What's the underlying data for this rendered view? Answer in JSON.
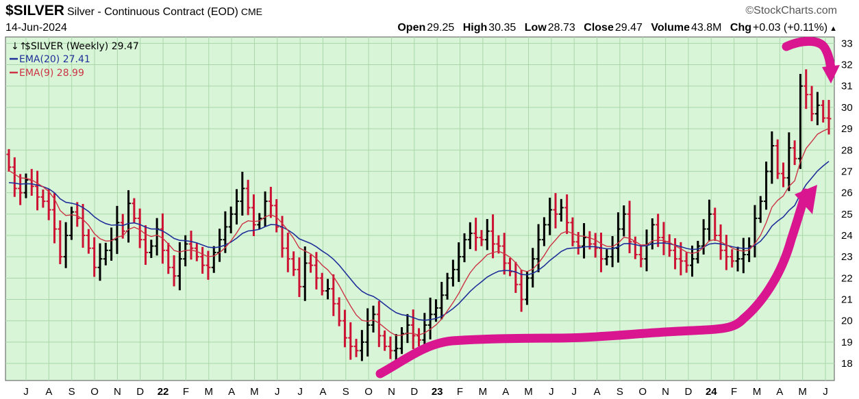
{
  "header": {
    "symbol": "$SILVER",
    "description": "Silver - Continuous Contract (EOD)",
    "exchange": "CME",
    "brand": "©StockCharts.com",
    "date": "14-Jun-2024",
    "open_label": "Open",
    "open": "29.25",
    "high_label": "High",
    "high": "30.35",
    "low_label": "Low",
    "low": "28.73",
    "close_label": "Close",
    "close": "29.47",
    "volume_label": "Volume",
    "volume": "43.8M",
    "chg_label": "Chg",
    "chg": "+0.03 (+0.11%)",
    "chg_arrow": "▲"
  },
  "legend": {
    "price": "$SILVER (Weekly) 29.47",
    "ema20": "EMA(20) 27.41",
    "ema9": "EMA(9) 28.99"
  },
  "colors": {
    "plot_bg": "#d8f5d8",
    "grid": "#a9d6a9",
    "up_bar": "#000000",
    "down_bar": "#cc1133",
    "ema20": "#1f2f99",
    "ema9": "#cc3344",
    "annotation": "#d9168f"
  },
  "chart_data": {
    "type": "ohlc",
    "ylim": [
      17.2,
      33.3
    ],
    "yticks": [
      18,
      19,
      20,
      21,
      22,
      23,
      24,
      25,
      26,
      27,
      28,
      29,
      30,
      31,
      32,
      33
    ],
    "x_tick_labels": [
      "J",
      "A",
      "S",
      "O",
      "N",
      "D",
      "22",
      "F",
      "M",
      "A",
      "M",
      "J",
      "J",
      "A",
      "S",
      "O",
      "N",
      "D",
      "23",
      "F",
      "M",
      "A",
      "M",
      "J",
      "J",
      "A",
      "S",
      "O",
      "N",
      "D",
      "24",
      "F",
      "M",
      "A",
      "M",
      "J"
    ],
    "grid": true,
    "legend_position": "top-left",
    "series": [
      {
        "name": "$SILVER (Weekly)",
        "last": 29.47
      },
      {
        "name": "EMA(20)",
        "last": 27.41
      },
      {
        "name": "EMA(9)",
        "last": 28.99
      }
    ],
    "close_by_week": [
      27.2,
      26.2,
      26.0,
      26.6,
      26.3,
      25.8,
      25.6,
      25.2,
      24.3,
      23.0,
      24.0,
      25.1,
      24.8,
      24.0,
      23.4,
      22.5,
      22.9,
      23.3,
      23.8,
      24.6,
      24.2,
      25.5,
      24.8,
      23.8,
      23.2,
      23.5,
      24.3,
      23.3,
      22.5,
      22.1,
      22.9,
      23.6,
      23.4,
      23.0,
      22.6,
      22.5,
      23.2,
      23.8,
      24.4,
      25.0,
      25.6,
      26.2,
      25.3,
      24.5,
      24.8,
      25.6,
      25.4,
      24.4,
      23.4,
      22.9,
      22.4,
      21.6,
      22.7,
      22.6,
      22.0,
      21.4,
      21.5,
      20.8,
      20.0,
      19.2,
      18.8,
      18.6,
      19.0,
      19.8,
      20.3,
      19.3,
      18.8,
      18.6,
      18.7,
      19.4,
      19.8,
      19.3,
      19.1,
      19.8,
      20.3,
      20.6,
      21.2,
      22.0,
      22.4,
      23.0,
      23.8,
      24.1,
      23.9,
      23.8,
      24.2,
      23.6,
      23.5,
      22.7,
      22.3,
      21.7,
      21.0,
      22.0,
      22.9,
      23.8,
      24.5,
      25.2,
      25.0,
      25.3,
      24.6,
      23.7,
      23.5,
      23.9,
      23.6,
      23.4,
      22.9,
      23.0,
      23.4,
      24.3,
      25.0,
      23.7,
      23.1,
      22.9,
      23.6,
      24.5,
      23.9,
      23.7,
      23.3,
      22.9,
      22.8,
      22.6,
      22.9,
      23.5,
      24.3,
      25.0,
      24.0,
      23.3,
      23.0,
      22.8,
      22.9,
      23.1,
      23.5,
      24.8,
      25.6,
      27.0,
      28.2,
      26.9,
      26.7,
      28.1,
      27.6,
      31.0,
      30.6,
      29.7,
      30.1,
      29.5,
      29.47
    ]
  }
}
